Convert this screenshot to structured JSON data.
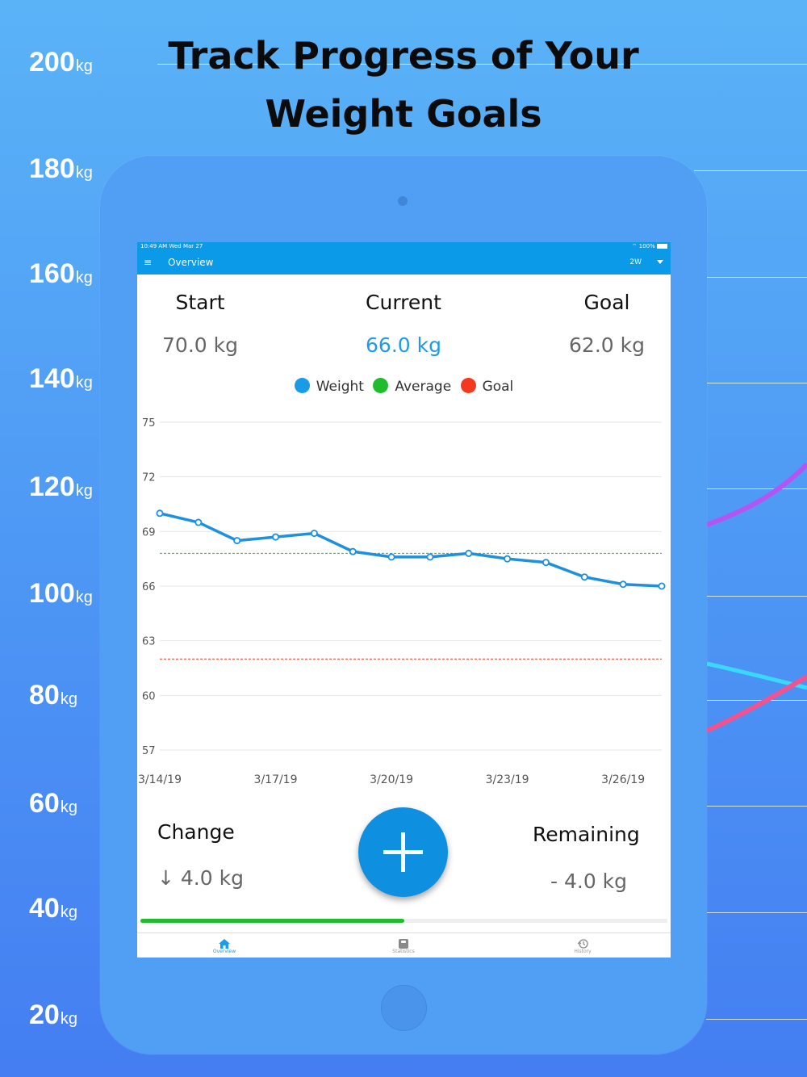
{
  "background_scale": {
    "unit": "kg",
    "values": [
      "200",
      "180",
      "160",
      "140",
      "120",
      "100",
      "80",
      "60",
      "40",
      "20"
    ]
  },
  "headline": {
    "line1": "Track Progress of Your",
    "line2": "Weight Goals"
  },
  "status_bar": {
    "time": "10:49 AM  Wed Mar 27",
    "battery": "100%"
  },
  "app_bar": {
    "title": "Overview",
    "range": "2W"
  },
  "summary": {
    "start_label": "Start",
    "start_value": "70.0 kg",
    "current_label": "Current",
    "current_value": "66.0 kg",
    "goal_label": "Goal",
    "goal_value": "62.0 kg"
  },
  "legend": {
    "weight": "Weight",
    "average": "Average",
    "goal": "Goal"
  },
  "colors": {
    "weight": "#1e90dd",
    "average": "#1fbd2d",
    "goal": "#f33a1f",
    "accent": "#0a9ae8"
  },
  "chart_data": {
    "type": "line",
    "x": [
      "3/14/19",
      "3/15/19",
      "3/16/19",
      "3/17/19",
      "3/18/19",
      "3/19/19",
      "3/20/19",
      "3/21/19",
      "3/22/19",
      "3/23/19",
      "3/24/19",
      "3/25/19",
      "3/26/19",
      "3/27/19"
    ],
    "x_tick_labels": [
      "3/14/19",
      "3/17/19",
      "3/20/19",
      "3/23/19",
      "3/26/19"
    ],
    "y_tick_labels": [
      "75",
      "72",
      "69",
      "66",
      "63",
      "60",
      "57"
    ],
    "ylim": [
      57,
      75
    ],
    "series": [
      {
        "name": "Weight",
        "values": [
          70.0,
          69.5,
          68.5,
          68.7,
          68.9,
          67.9,
          67.6,
          67.6,
          67.8,
          67.5,
          67.3,
          66.5,
          66.1,
          66.0
        ]
      }
    ],
    "average_line": 67.8,
    "goal_line": 62.0,
    "grid": true,
    "legend_position": "top"
  },
  "progress": {
    "change_label": "Change",
    "change_value": "↓ 4.0 kg",
    "remaining_label": "Remaining",
    "remaining_value": "- 4.0 kg",
    "completion_fraction": 0.5
  },
  "tabs": [
    {
      "label": "Overview",
      "icon": "home-icon"
    },
    {
      "label": "Statistics",
      "icon": "scale-icon"
    },
    {
      "label": "History",
      "icon": "history-icon"
    }
  ]
}
